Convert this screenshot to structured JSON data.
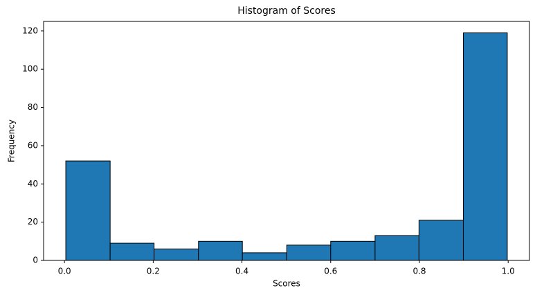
{
  "chart_data": {
    "type": "histogram",
    "title": "Histogram of Scores",
    "x_label": "Scores",
    "y_label": "Frequency",
    "bins": [
      0.003,
      0.103,
      0.202,
      0.302,
      0.401,
      0.501,
      0.6,
      0.7,
      0.799,
      0.899,
      0.998
    ],
    "values": [
      52,
      9,
      6,
      10,
      4,
      8,
      10,
      13,
      21,
      119
    ],
    "color": "#1f77b4",
    "edgecolor": "#000000",
    "xlim": [
      -0.047,
      1.048
    ],
    "xticks": [
      {
        "value": 0,
        "label": "0.0"
      },
      {
        "value": 0.2,
        "label": "0.2"
      },
      {
        "value": 0.4,
        "label": "0.4"
      },
      {
        "value": 0.6,
        "label": "0.6"
      },
      {
        "value": 0.8,
        "label": "0.8"
      },
      {
        "value": 1,
        "label": "1.0"
      }
    ],
    "ylim": [
      0,
      125
    ],
    "yticks": [
      0,
      20,
      40,
      60,
      80,
      100,
      120
    ],
    "grid": false
  }
}
